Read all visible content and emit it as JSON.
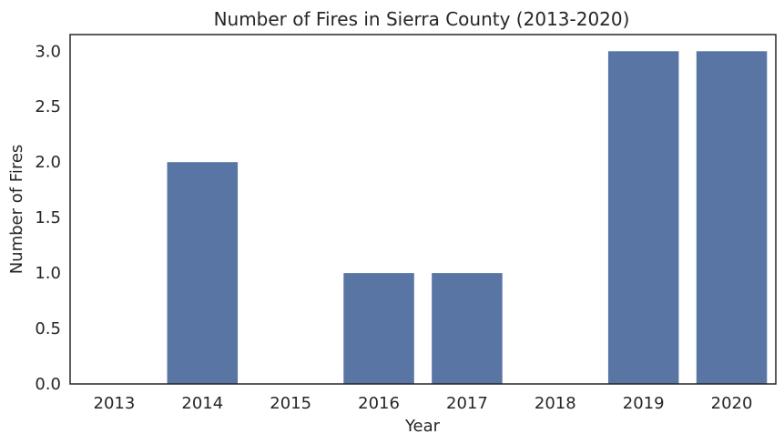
{
  "chart_data": {
    "type": "bar",
    "title": "Number of Fires in Sierra County (2013-2020)",
    "xlabel": "Year",
    "ylabel": "Number of Fires",
    "categories": [
      "2013",
      "2014",
      "2015",
      "2016",
      "2017",
      "2018",
      "2019",
      "2020"
    ],
    "values": [
      0,
      2,
      0,
      1,
      1,
      0,
      3,
      3
    ],
    "ylim": [
      0,
      3.15
    ],
    "yticks": [
      "0.0",
      "0.5",
      "1.0",
      "1.5",
      "2.0",
      "2.5",
      "3.0"
    ],
    "bar_color": "#5975a4",
    "grid": false
  }
}
